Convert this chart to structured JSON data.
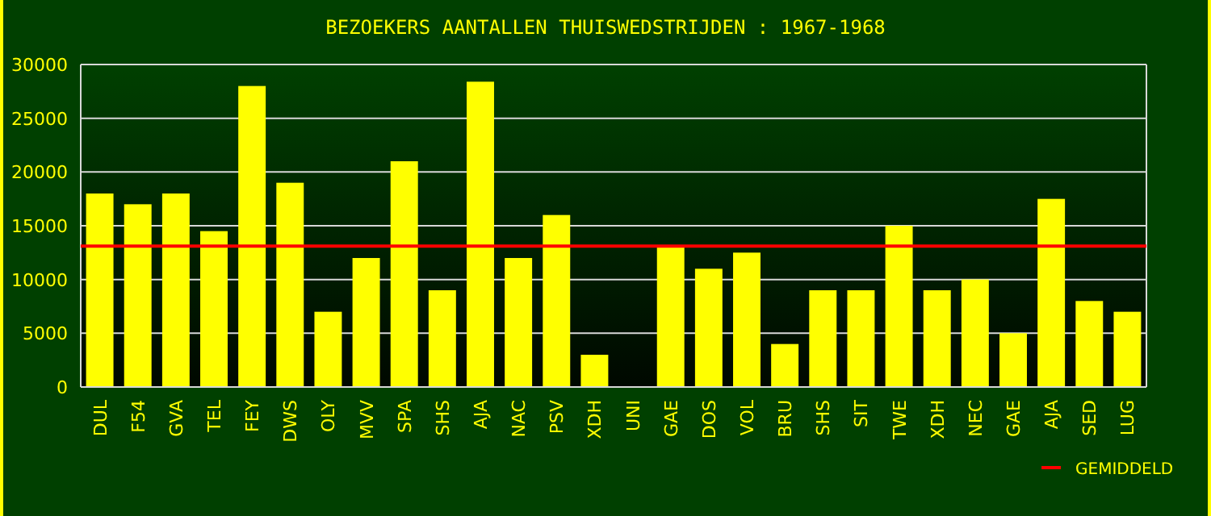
{
  "chart_data": {
    "type": "bar",
    "title": "BEZOEKERS AANTALLEN THUISWEDSTRIJDEN : 1967-1968",
    "categories": [
      "DUL",
      "F54",
      "GVA",
      "TEL",
      "FEY",
      "DWS",
      "OLY",
      "MVV",
      "SPA",
      "SHS",
      "AJA",
      "NAC",
      "PSV",
      "XDH",
      "UNI",
      "GAE",
      "DOS",
      "VOL",
      "BRU",
      "SHS",
      "SIT",
      "TWE",
      "XDH",
      "NEC",
      "GAE",
      "AJA",
      "SED",
      "LUG"
    ],
    "values": [
      18000,
      17000,
      18000,
      14500,
      28000,
      19000,
      7000,
      12000,
      21000,
      9000,
      28400,
      12000,
      16000,
      3000,
      null,
      13000,
      11000,
      12500,
      4000,
      9000,
      9000,
      15000,
      9000,
      10000,
      5000,
      17500,
      8000,
      7000
    ],
    "color": "#ffff00",
    "ylim": [
      0,
      30000
    ],
    "yticks": [
      0,
      5000,
      10000,
      15000,
      20000,
      25000,
      30000
    ],
    "grid": "y",
    "ref_lines": [
      {
        "axis": "y",
        "value": 13100,
        "label": "GEMIDDELD",
        "color": "#ff0000"
      }
    ],
    "legend": "bottom right"
  }
}
